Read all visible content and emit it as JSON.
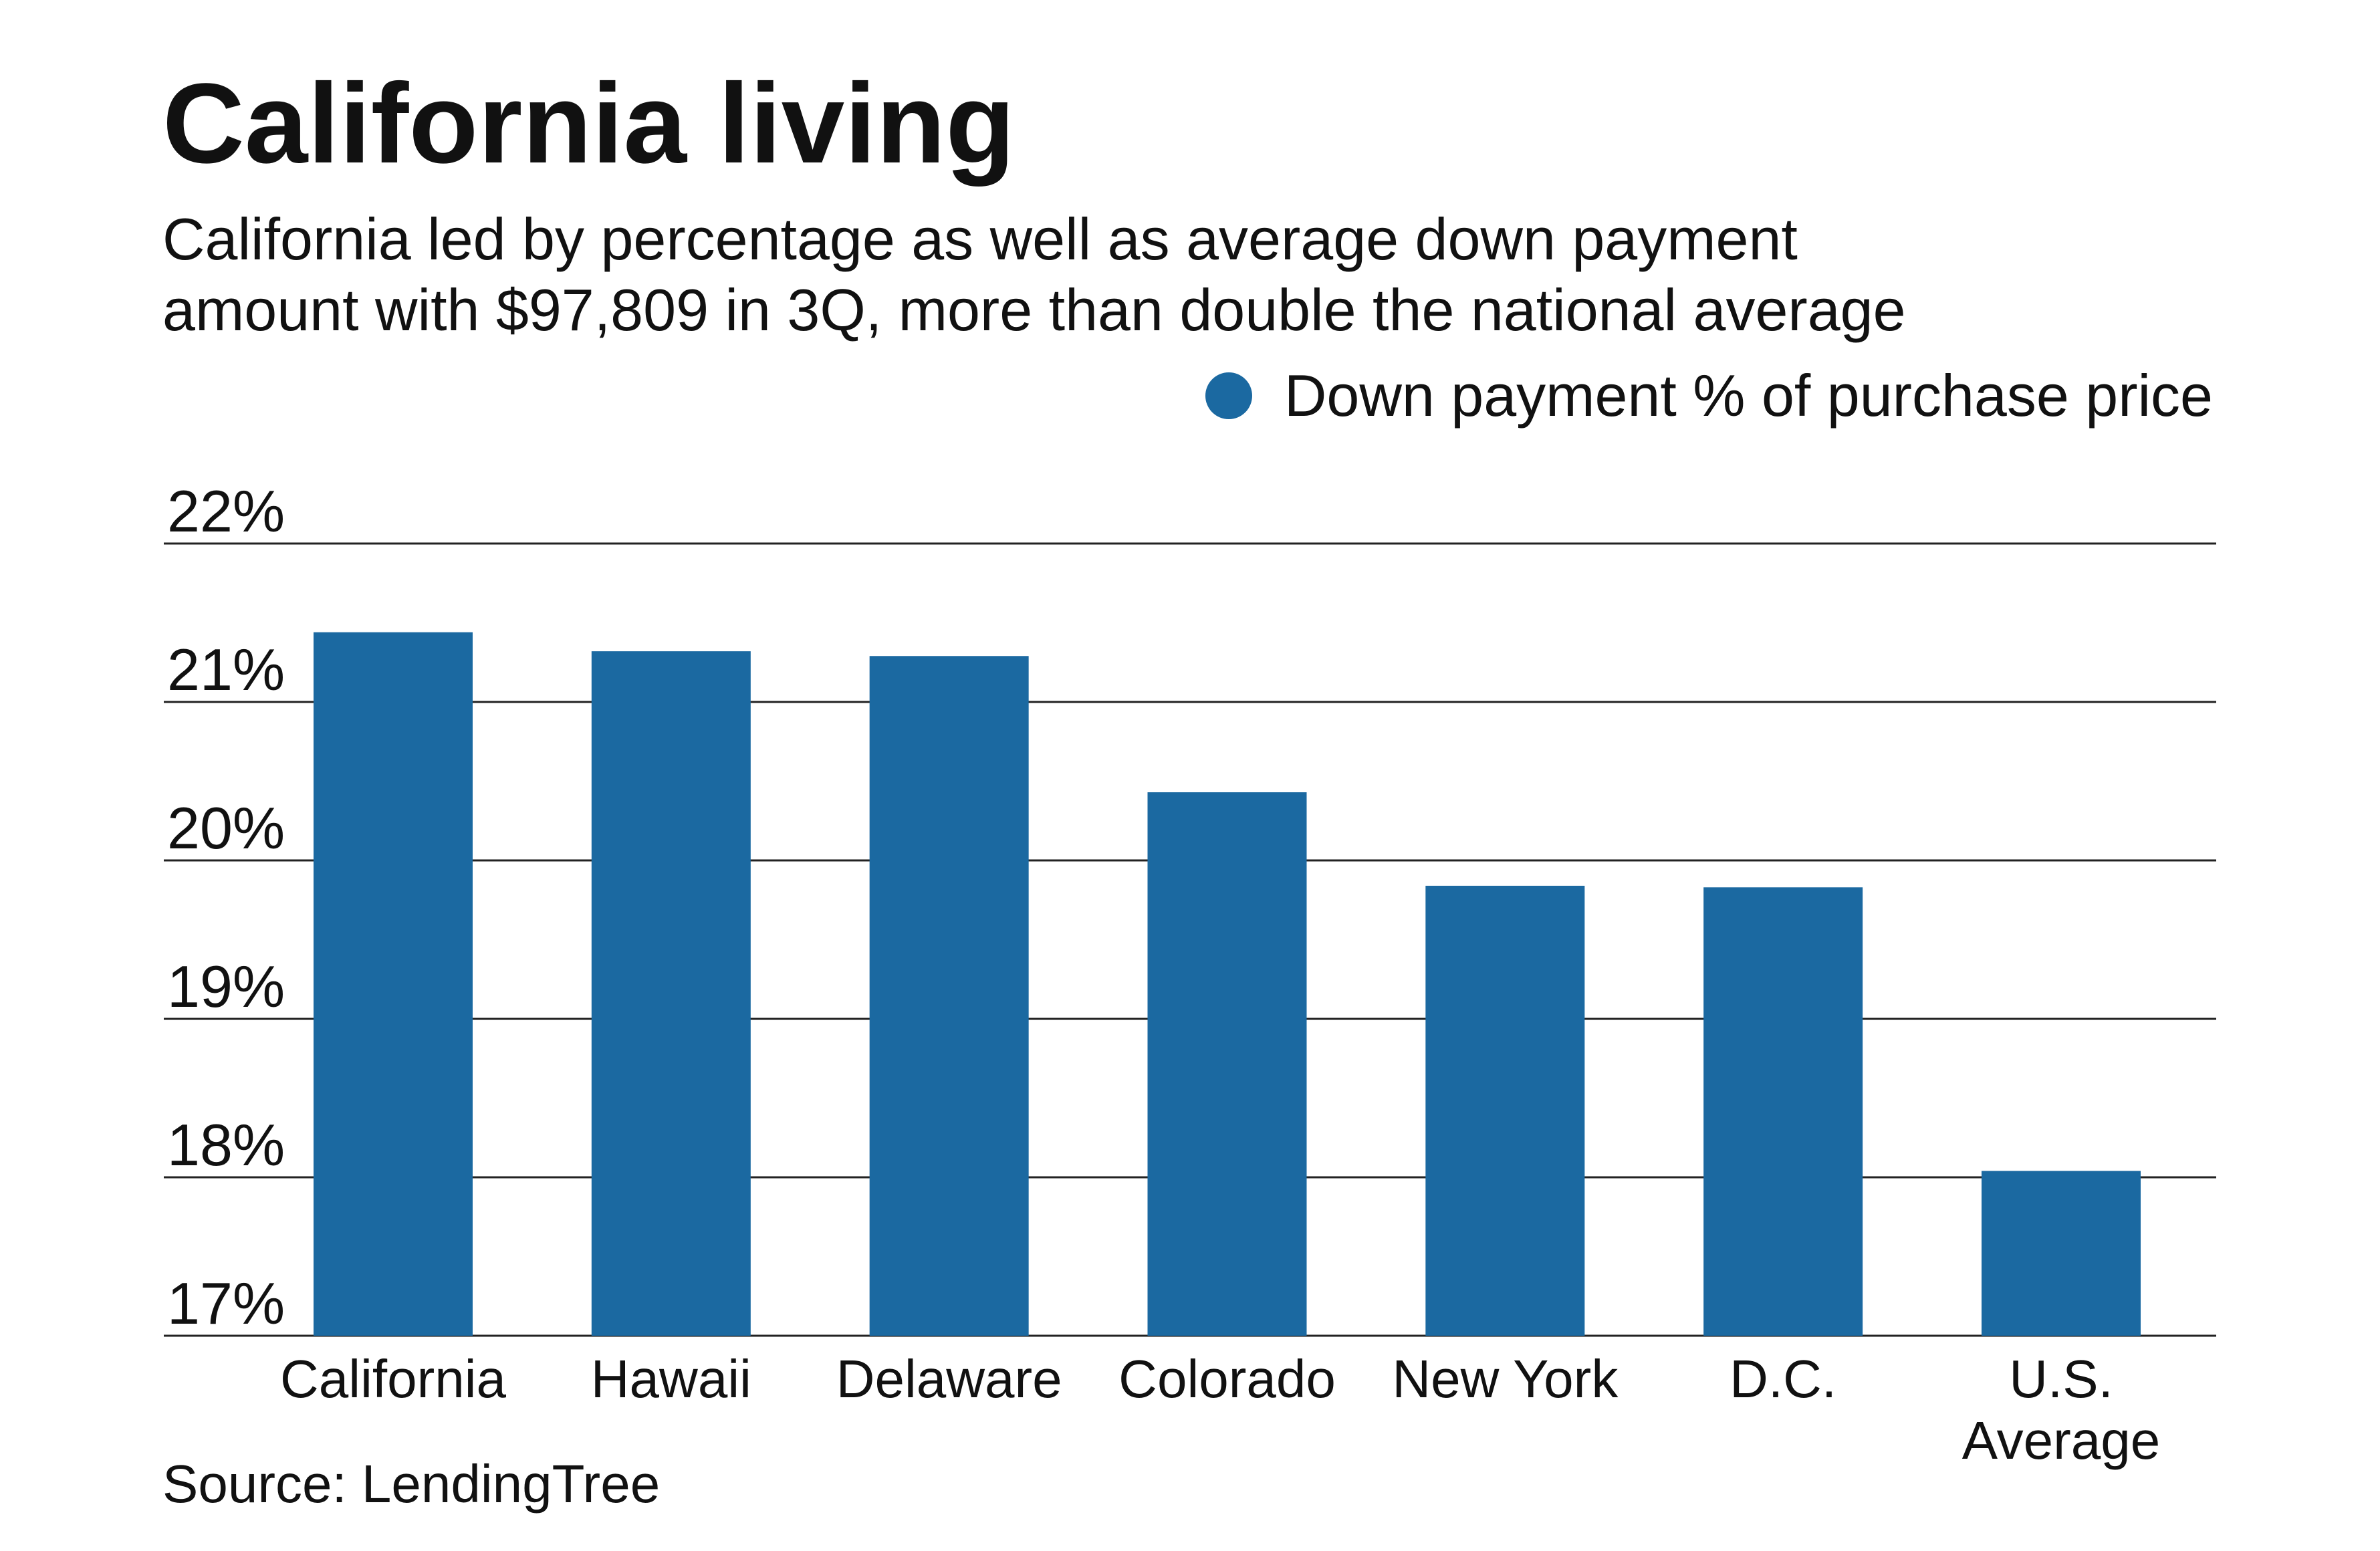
{
  "title": "California living",
  "subtitle_lines": [
    "California led by percentage as well as average down payment",
    "amount with $97,809 in 3Q, more than double the national average"
  ],
  "legend": {
    "label": "Down payment % of purchase price"
  },
  "source": "Source: LendingTree",
  "colors": {
    "bar": "#1b69a1",
    "gridline": "#222222",
    "text": "#111111"
  },
  "chart_data": {
    "type": "bar",
    "categories": [
      "California",
      "Hawaii",
      "Delaware",
      "Colorado",
      "New York",
      "D.C.",
      "U.S. Average"
    ],
    "category_lines": [
      [
        "California"
      ],
      [
        "Hawaii"
      ],
      [
        "Delaware"
      ],
      [
        "Colorado"
      ],
      [
        "New York"
      ],
      [
        "D.C."
      ],
      [
        "U.S.",
        "Average"
      ]
    ],
    "series": [
      {
        "name": "Down payment % of purchase price",
        "values": [
          21.44,
          21.32,
          21.29,
          20.43,
          19.84,
          19.83,
          18.04
        ]
      }
    ],
    "ylim": [
      17,
      22
    ],
    "yticks": [
      17,
      18,
      19,
      20,
      21,
      22
    ],
    "ytick_labels": [
      "17%",
      "18%",
      "19%",
      "20%",
      "21%",
      "22%"
    ],
    "grid": true,
    "legend_position": "top-right"
  }
}
